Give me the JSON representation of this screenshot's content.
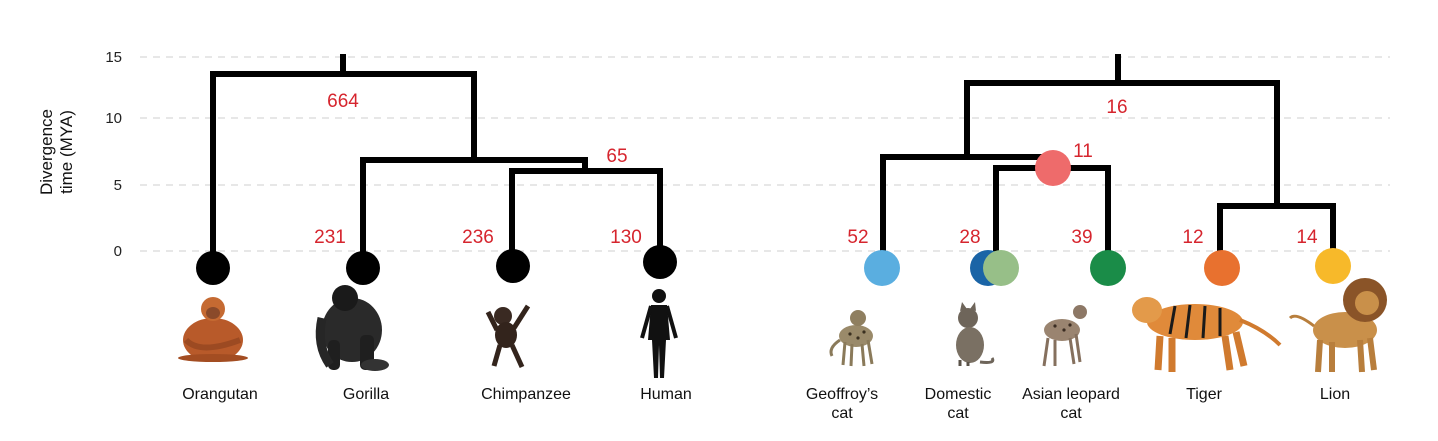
{
  "axis": {
    "title_line1": "Divergence",
    "title_line2": "time (MYA)",
    "ticks": [
      "15",
      "10",
      "5",
      "0"
    ]
  },
  "primates": {
    "root_count": "664",
    "african_apes_count": "65",
    "tips": [
      {
        "name": "Orangutan",
        "count": "",
        "color": "#000000",
        "icon": "orangutan-image"
      },
      {
        "name": "Gorilla",
        "count": "231",
        "color": "#000000",
        "icon": "gorilla-image"
      },
      {
        "name": "Chimpanzee",
        "count": "236",
        "color": "#000000",
        "icon": "chimpanzee-image"
      },
      {
        "name": "Human",
        "count": "130",
        "color": "#000000",
        "icon": "human-silhouette-image"
      }
    ]
  },
  "felids": {
    "root_count": "16",
    "small_cats_count": "11",
    "tips": [
      {
        "name_line1": "Geoffroy’s",
        "name_line2": "cat",
        "count": "52",
        "color": "#5aaee0",
        "icon": "geoffroys-cat-image"
      },
      {
        "name_line1": "Domestic",
        "name_line2": "cat",
        "count": "28",
        "color": "#1a64a6",
        "color2": "#97bf88",
        "icon": "domestic-cat-image"
      },
      {
        "name_line1": "Asian leopard",
        "name_line2": "cat",
        "count": "39",
        "color": "#1a8c48",
        "icon": "asian-leopard-cat-image"
      },
      {
        "name_line1": "Tiger",
        "name_line2": "",
        "count": "12",
        "color": "#e8712f",
        "icon": "tiger-image"
      },
      {
        "name_line1": "Lion",
        "name_line2": "",
        "count": "14",
        "color": "#f7b92a",
        "icon": "lion-image"
      }
    ],
    "node_color": "#ee6b6b"
  }
}
